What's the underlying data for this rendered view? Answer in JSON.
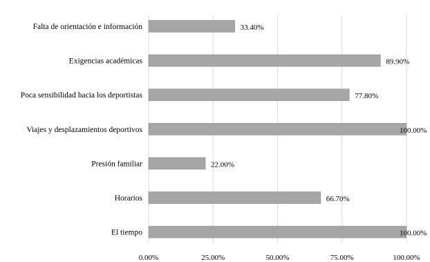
{
  "chart_data": {
    "type": "bar",
    "orientation": "horizontal",
    "categories": [
      "Falta de orientación e información",
      "Exigencias académicas",
      "Poca sensibilidad hacia los deportistas",
      "Viajes y desplazamientos deportivos",
      "Presión familiar",
      "Horarios",
      "El tiempo"
    ],
    "values": [
      33.4,
      89.9,
      77.8,
      100.0,
      22.0,
      66.7,
      100.0
    ],
    "value_labels": [
      "33.40%",
      "89.90%",
      "77.80%",
      "100.00%",
      "22.00%",
      "66.70%",
      "100.00%"
    ],
    "x_ticks": [
      0,
      25,
      50,
      75,
      100
    ],
    "x_tick_labels": [
      "0.00%",
      "25.00%",
      "50.00%",
      "75.00%",
      "100.00%"
    ],
    "xlim": [
      0,
      100
    ],
    "grid": "vertical",
    "legend": "none",
    "bar_color": "#a6a6a6"
  }
}
